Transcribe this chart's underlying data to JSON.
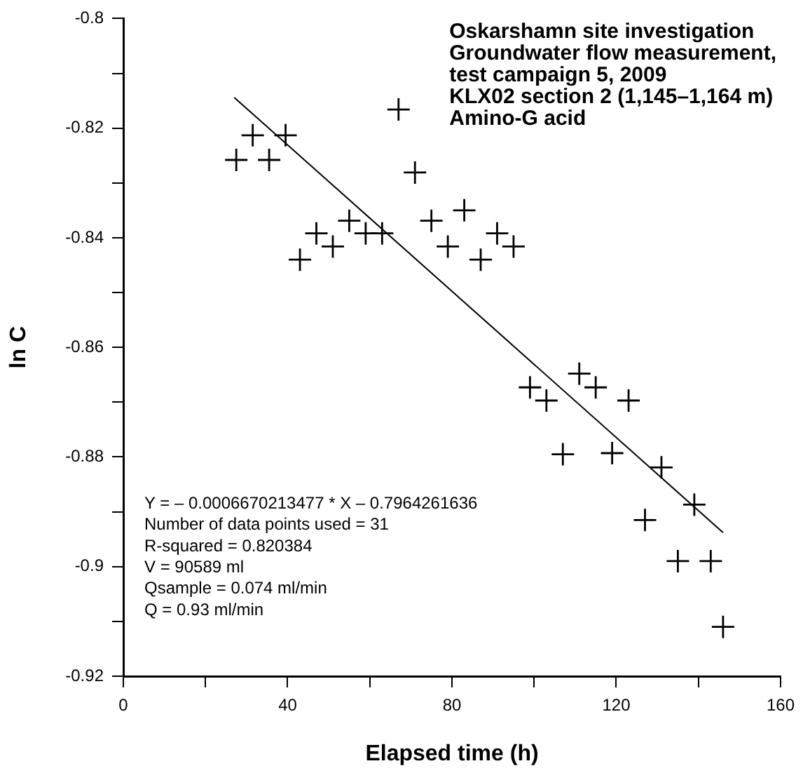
{
  "chart_data": {
    "type": "scatter",
    "title": "Oskarshamn site investigation\nGroundwater flow measurement,\ntest campaign 5, 2009\nKLX02 section 2 (1,145–1,164 m)\nAmino-G acid",
    "xlabel": "Elapsed time (h)",
    "ylabel": "ln C",
    "annotations": [
      "Y = – 0.0006670213477 * X – 0.7964261636",
      "Number of data points used = 31",
      "R-squared = 0.820384",
      "V = 90589 ml",
      "Qsample = 0.074 ml/min",
      "Q = 0.93 ml/min"
    ],
    "xlim": [
      0,
      160
    ],
    "xticks": [
      0,
      {
        "value": 20,
        "label": null
      },
      40,
      {
        "value": 60,
        "label": null
      },
      80,
      {
        "value": 100,
        "label": null
      },
      120,
      {
        "value": 140,
        "label": null
      },
      160
    ],
    "ylim": [
      -0.92,
      -0.8
    ],
    "yticks": [
      -0.92,
      {
        "value": -0.91,
        "label": null
      },
      -0.9,
      {
        "value": -0.89,
        "label": null
      },
      -0.88,
      {
        "value": -0.87,
        "label": null
      },
      -0.86,
      {
        "value": -0.85,
        "label": null
      },
      -0.84,
      {
        "value": -0.83,
        "label": null
      },
      -0.82,
      {
        "value": -0.81,
        "label": null
      },
      -0.8
    ],
    "grid": false,
    "legend": false,
    "marker": "cross",
    "series": [
      {
        "color": "#000000",
        "x": [
          27.5,
          31.5,
          35.5,
          39.5,
          43,
          47,
          51,
          55,
          59,
          63,
          67,
          71,
          75,
          79,
          83,
          87,
          91,
          95,
          99,
          103,
          107,
          111,
          115,
          119,
          123,
          127,
          131,
          135,
          139,
          143,
          146
        ],
        "values": [
          -0.8258,
          -0.8213,
          -0.8258,
          -0.8213,
          -0.844,
          -0.8392,
          -0.8416,
          -0.8369,
          -0.8392,
          -0.8392,
          -0.8166,
          -0.8281,
          -0.8369,
          -0.8416,
          -0.835,
          -0.844,
          -0.8392,
          -0.8416,
          -0.8673,
          -0.8697,
          -0.8795,
          -0.8648,
          -0.8673,
          -0.8793,
          -0.8697,
          -0.8915,
          -0.8819,
          -0.899,
          -0.8887,
          -0.899,
          -0.911
        ]
      },
      {
        "type": "line",
        "color": "#000000",
        "marker": "none",
        "x": [
          27,
          146
        ],
        "values": [
          -0.8144,
          -0.8938
        ]
      }
    ]
  }
}
